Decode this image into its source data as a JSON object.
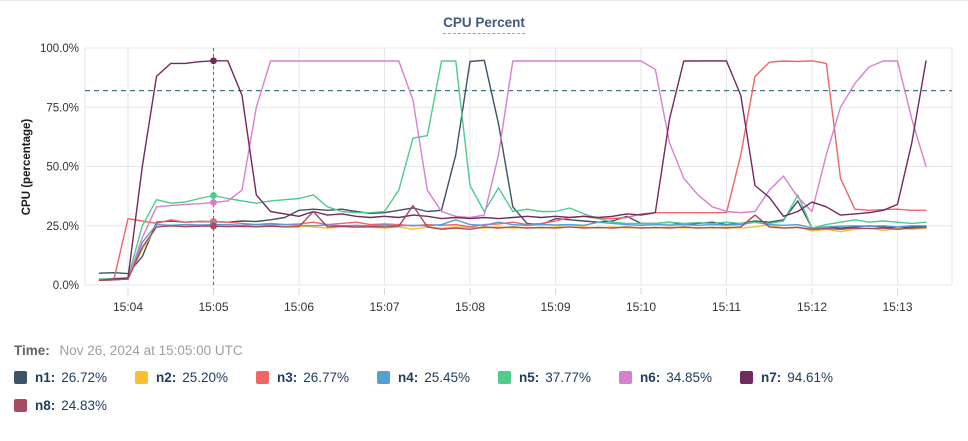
{
  "title": "CPU Percent",
  "time_info": {
    "label": "Time:",
    "value": "Nov 26, 2024 at 15:05:00 UTC"
  },
  "colors": {
    "title_text": "#3f5a7d",
    "legend_text": "#1d3c5e",
    "grid": "#e7e7ea",
    "axis_text": "#333333",
    "guide_lines": "#44758a"
  },
  "chart_data": {
    "type": "line",
    "title": "CPU Percent",
    "xlabel": "",
    "ylabel": "CPU (percentage)",
    "ylim": [
      0,
      100
    ],
    "y_tick_values": [
      0,
      25,
      50,
      75,
      100
    ],
    "y_tick_labels": [
      "0.0%",
      "25.0%",
      "50.0%",
      "75.0%",
      "100.0%"
    ],
    "x_tick_labels": [
      "15:04",
      "15:05",
      "15:06",
      "15:07",
      "15:08",
      "15:09",
      "15:10",
      "15:11",
      "15:12",
      "15:13"
    ],
    "grid": true,
    "legend_position": "bottom",
    "time_start": "15:03:40",
    "sample_interval_seconds": 10,
    "threshold_value": 82,
    "cursor_time": "15:05:00",
    "cursor_index": 8,
    "series": [
      {
        "name": "n1",
        "legend_label": "n1:",
        "legend_value": "26.72%",
        "value_at_cursor": 26.72,
        "color": "#3f5266",
        "values": [
          5.0,
          5.2,
          4.8,
          12.0,
          26.5,
          27.0,
          26.5,
          26.8,
          26.72,
          26.5,
          27.0,
          26.8,
          27.5,
          28.5,
          31.5,
          32.0,
          31.5,
          32.0,
          31.0,
          30.2,
          30.5,
          31.5,
          32.5,
          31.0,
          31.5,
          55.0,
          94.3,
          94.8,
          68.0,
          33.0,
          26.0,
          25.5,
          28.0,
          27.5,
          27.0,
          26.5,
          27.0,
          29.0,
          26.0,
          26.0,
          26.5,
          25.5,
          26.0,
          26.5,
          25.5,
          26.0,
          27.0,
          26.5,
          27.5,
          35.5,
          24.0,
          24.5,
          24.0,
          24.5,
          25.0,
          24.5,
          24.0,
          24.5,
          24.5
        ]
      },
      {
        "name": "n2",
        "legend_label": "n2:",
        "legend_value": "25.20%",
        "value_at_cursor": 25.2,
        "color": "#fbc02d",
        "values": [
          2.5,
          2.6,
          3.0,
          15.0,
          24.5,
          25.0,
          24.8,
          25.0,
          25.2,
          25.0,
          24.5,
          24.8,
          25.0,
          24.5,
          24.8,
          24.5,
          24.0,
          24.5,
          24.3,
          24.5,
          24.0,
          24.5,
          23.5,
          24.5,
          24.0,
          24.5,
          24.3,
          24.0,
          24.5,
          24.0,
          24.3,
          24.0,
          24.5,
          25.5,
          24.5,
          24.0,
          24.5,
          24.0,
          24.3,
          24.0,
          24.5,
          24.0,
          24.3,
          24.0,
          24.5,
          24.0,
          24.5,
          25.5,
          24.0,
          24.5,
          22.8,
          23.5,
          22.5,
          23.5,
          24.0,
          23.0,
          24.0,
          23.5,
          24.0
        ]
      },
      {
        "name": "n3",
        "legend_label": "n3:",
        "legend_value": "26.77%",
        "value_at_cursor": 26.77,
        "color": "#ef6666",
        "values": [
          2.0,
          2.2,
          28.0,
          27.0,
          26.0,
          27.5,
          26.5,
          26.8,
          26.77,
          26.5,
          26.0,
          25.5,
          26.0,
          25.5,
          25.8,
          26.5,
          25.5,
          26.0,
          26.5,
          25.5,
          25.8,
          25.5,
          25.0,
          25.5,
          25.2,
          25.5,
          24.5,
          25.5,
          25.8,
          26.5,
          25.5,
          26.0,
          27.0,
          28.5,
          29.0,
          28.0,
          28.0,
          28.5,
          30.0,
          30.5,
          30.5,
          30.5,
          30.5,
          30.5,
          30.5,
          55.0,
          88.0,
          94.0,
          94.5,
          94.3,
          94.6,
          93.5,
          45.0,
          32.0,
          31.5,
          31.8,
          32.0,
          31.5,
          31.5
        ]
      },
      {
        "name": "n4",
        "legend_label": "n4:",
        "legend_value": "25.45%",
        "value_at_cursor": 25.45,
        "color": "#54a0d4",
        "values": [
          2.2,
          2.3,
          2.5,
          18.0,
          25.5,
          25.2,
          25.5,
          25.3,
          25.45,
          25.5,
          25.2,
          25.5,
          25.3,
          25.5,
          25.2,
          25.0,
          25.3,
          25.0,
          25.2,
          25.0,
          25.3,
          25.0,
          25.2,
          25.0,
          25.5,
          27.5,
          25.5,
          25.2,
          26.5,
          25.5,
          25.2,
          25.5,
          25.3,
          25.5,
          25.2,
          26.5,
          26.0,
          25.5,
          25.2,
          25.5,
          25.3,
          25.5,
          25.2,
          25.5,
          25.3,
          25.5,
          26.5,
          25.5,
          25.2,
          25.5,
          24.0,
          24.5,
          24.8,
          25.0,
          24.8,
          25.0,
          24.5,
          25.0,
          25.0
        ]
      },
      {
        "name": "n5",
        "legend_label": "n5:",
        "legend_value": "37.77%",
        "value_at_cursor": 37.77,
        "color": "#4ecb8d",
        "values": [
          2.5,
          2.8,
          3.0,
          25.0,
          36.0,
          34.5,
          35.0,
          36.5,
          37.77,
          36.5,
          35.5,
          34.5,
          35.5,
          36.0,
          36.5,
          38.0,
          33.0,
          31.0,
          30.5,
          30.5,
          31.0,
          40.0,
          62.0,
          63.0,
          94.5,
          94.5,
          42.0,
          31.0,
          41.0,
          31.0,
          32.0,
          31.0,
          31.0,
          32.5,
          30.0,
          28.0,
          26.5,
          26.0,
          26.0,
          26.0,
          26.5,
          26.0,
          26.3,
          26.0,
          26.5,
          26.0,
          26.5,
          26.0,
          27.0,
          38.0,
          24.0,
          25.5,
          26.5,
          27.5,
          26.5,
          27.0,
          26.5,
          26.0,
          26.5
        ]
      },
      {
        "name": "n6",
        "legend_label": "n6:",
        "legend_value": "34.85%",
        "value_at_cursor": 34.85,
        "color": "#d97fd0",
        "values": [
          2.0,
          2.2,
          2.5,
          20.0,
          33.0,
          33.5,
          34.0,
          34.3,
          34.85,
          35.5,
          40.0,
          75.0,
          94.5,
          94.5,
          94.5,
          94.5,
          94.5,
          94.5,
          94.5,
          94.5,
          94.5,
          94.5,
          78.0,
          40.0,
          31.0,
          29.0,
          28.5,
          29.5,
          55.0,
          94.5,
          94.5,
          94.5,
          94.5,
          94.5,
          94.5,
          94.5,
          94.5,
          94.5,
          94.5,
          91.0,
          60.0,
          45.0,
          38.0,
          33.0,
          31.0,
          30.5,
          31.0,
          40.0,
          46.0,
          37.0,
          31.0,
          55.0,
          75.0,
          85.0,
          92.0,
          94.5,
          94.5,
          70.0,
          50.0
        ]
      },
      {
        "name": "n7",
        "legend_label": "n7:",
        "legend_value": "94.61%",
        "value_at_cursor": 94.61,
        "color": "#722a5e",
        "values": [
          2.0,
          2.5,
          3.0,
          50.0,
          88.0,
          93.5,
          93.5,
          94.2,
          94.61,
          94.6,
          80.0,
          38.0,
          31.0,
          30.0,
          29.0,
          31.0,
          29.5,
          30.0,
          29.0,
          28.5,
          29.0,
          28.5,
          29.5,
          29.0,
          28.0,
          28.5,
          28.0,
          28.5,
          28.0,
          28.5,
          29.0,
          28.5,
          29.0,
          28.5,
          29.0,
          28.5,
          29.0,
          30.0,
          29.5,
          30.5,
          70.0,
          94.5,
          94.5,
          94.6,
          94.5,
          80.0,
          42.0,
          37.0,
          29.0,
          31.0,
          35.0,
          33.0,
          29.5,
          30.0,
          30.5,
          31.5,
          34.0,
          60.0,
          94.5
        ]
      },
      {
        "name": "n8",
        "legend_label": "n8:",
        "legend_value": "24.83%",
        "value_at_cursor": 24.83,
        "color": "#a84a62",
        "values": [
          2.0,
          2.2,
          2.5,
          16.0,
          24.5,
          25.0,
          24.6,
          24.8,
          24.83,
          24.6,
          24.8,
          24.5,
          24.8,
          24.5,
          24.6,
          31.0,
          24.5,
          24.8,
          24.5,
          24.6,
          24.5,
          24.8,
          33.5,
          24.5,
          23.5,
          24.0,
          23.5,
          24.5,
          24.0,
          24.5,
          24.0,
          24.3,
          24.0,
          24.5,
          24.0,
          24.3,
          24.0,
          24.5,
          24.0,
          24.3,
          24.0,
          24.5,
          24.0,
          24.3,
          24.0,
          24.5,
          29.5,
          24.5,
          24.0,
          24.3,
          23.5,
          23.8,
          23.5,
          24.0,
          23.8,
          24.0,
          23.5,
          24.0,
          24.2
        ]
      }
    ]
  }
}
